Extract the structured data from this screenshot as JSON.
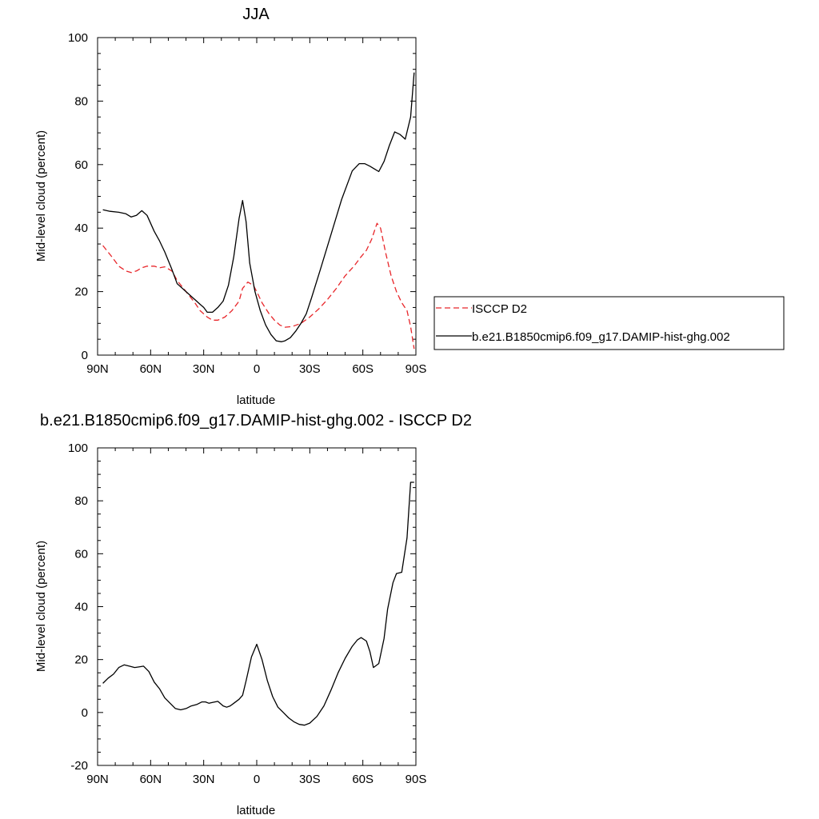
{
  "chart_data": [
    {
      "type": "line",
      "title": "JJA",
      "xlabel": "latitude",
      "ylabel": "Mid-level cloud (percent)",
      "xlim": [
        90,
        -90
      ],
      "ylim": [
        0,
        100
      ],
      "x_ticks": [
        {
          "value": 90,
          "label": "90N"
        },
        {
          "value": 60,
          "label": "60N"
        },
        {
          "value": 30,
          "label": "30N"
        },
        {
          "value": 0,
          "label": "0"
        },
        {
          "value": -30,
          "label": "30S"
        },
        {
          "value": -60,
          "label": "60S"
        },
        {
          "value": -90,
          "label": "90S"
        }
      ],
      "y_ticks": [
        0,
        20,
        40,
        60,
        80,
        100
      ],
      "grid": false,
      "legend_position": "right, outside plot",
      "series": [
        {
          "name": "ISCCP D2",
          "color": "#e8262a",
          "dash": "dashed",
          "x": [
            87,
            82,
            78,
            74,
            71,
            68,
            65,
            62,
            58,
            55,
            52,
            48,
            45,
            40,
            35,
            32,
            28,
            25,
            22,
            18,
            14,
            10,
            8,
            5,
            2,
            0,
            -3,
            -7,
            -10,
            -13,
            -16,
            -20,
            -25,
            -30,
            -35,
            -40,
            -45,
            -50,
            -55,
            -59,
            -62,
            -65,
            -66.5,
            -68,
            -70,
            -73,
            -76,
            -79,
            -82,
            -85,
            -87,
            -89
          ],
          "y": [
            34.5,
            31,
            28,
            26.5,
            26,
            26.5,
            27.5,
            28,
            28,
            27.5,
            27.8,
            26.5,
            23.5,
            20,
            16.5,
            14,
            12,
            11,
            11,
            12,
            14,
            17,
            21,
            23,
            22,
            20,
            16.5,
            13,
            11,
            9.5,
            8.8,
            9,
            10,
            12,
            14.5,
            17.5,
            21,
            25,
            28,
            31,
            33,
            36.5,
            39,
            41.5,
            40,
            32,
            25,
            20,
            16.5,
            14,
            9,
            2
          ]
        },
        {
          "name": "b.e21.B1850cmip6.f09_g17.DAMIP-hist-ghg.002",
          "color": "#000000",
          "dash": "solid",
          "x": [
            87,
            83,
            78,
            74,
            71,
            68,
            65,
            62,
            58,
            55,
            52,
            48,
            45,
            40,
            37,
            35,
            32,
            30,
            28,
            25,
            22,
            19,
            16,
            13,
            10,
            8,
            6,
            4,
            1,
            -2,
            -5,
            -8,
            -11,
            -14,
            -16,
            -19,
            -22,
            -25,
            -28,
            -31,
            -36,
            -42,
            -48,
            -54,
            -58,
            -61,
            -64,
            -67,
            -69,
            -72,
            -75,
            -78,
            -81,
            -84,
            -87,
            -89
          ],
          "y": [
            45.8,
            45.3,
            45,
            44.5,
            43.5,
            44,
            45.5,
            44,
            39,
            36,
            32.5,
            27,
            22.5,
            20,
            18.5,
            17.5,
            16,
            15,
            13.5,
            13.5,
            15,
            17,
            22,
            31,
            43,
            48.7,
            42,
            29,
            20,
            14,
            9.5,
            6.5,
            4.5,
            4.2,
            4.5,
            5.5,
            7.5,
            10,
            13,
            18,
            27,
            38,
            49,
            58,
            60.3,
            60.3,
            59.5,
            58.5,
            57.8,
            61,
            66,
            70.3,
            69.5,
            68,
            75,
            89
          ]
        }
      ]
    },
    {
      "type": "line",
      "title": "b.e21.B1850cmip6.f09_g17.DAMIP-hist-ghg.002 - ISCCP D2",
      "xlabel": "latitude",
      "ylabel": "Mid-level cloud (percent)",
      "xlim": [
        90,
        -90
      ],
      "ylim": [
        -20,
        100
      ],
      "x_ticks": [
        {
          "value": 90,
          "label": "90N"
        },
        {
          "value": 60,
          "label": "60N"
        },
        {
          "value": 30,
          "label": "30N"
        },
        {
          "value": 0,
          "label": "0"
        },
        {
          "value": -30,
          "label": "30S"
        },
        {
          "value": -60,
          "label": "60S"
        },
        {
          "value": -90,
          "label": "90S"
        }
      ],
      "y_ticks": [
        -20,
        0,
        20,
        40,
        60,
        80,
        100
      ],
      "grid": false,
      "series": [
        {
          "color": "#000000",
          "dash": "solid",
          "x": [
            87,
            84,
            81,
            78,
            75,
            72,
            69,
            66,
            64,
            61,
            58,
            55,
            52,
            49,
            46,
            43,
            40,
            37,
            34,
            31,
            29,
            27,
            25,
            22,
            19,
            17,
            15,
            13,
            10,
            8,
            6,
            3,
            0,
            -3,
            -6,
            -9,
            -12,
            -15,
            -18,
            -21,
            -24,
            -27,
            -30,
            -34,
            -38,
            -42,
            -46,
            -50,
            -54,
            -57,
            -59,
            -62,
            -64,
            -66,
            -69,
            -72,
            -74,
            -77,
            -79,
            -82,
            -85,
            -87,
            -89
          ],
          "y": [
            11,
            13,
            14.5,
            17,
            18,
            17.5,
            17,
            17.3,
            17.5,
            15.5,
            11.5,
            9,
            5.5,
            3.5,
            1.5,
            1,
            1.5,
            2.5,
            3,
            4,
            4,
            3.5,
            3.8,
            4.2,
            2.5,
            2,
            2.5,
            3.5,
            5,
            6.5,
            12,
            21,
            25.8,
            20,
            12,
            6,
            2,
            0,
            -2,
            -3.5,
            -4.5,
            -4.8,
            -4,
            -1.5,
            2.5,
            8.5,
            15,
            20.5,
            25,
            27.5,
            28.3,
            27,
            23,
            17,
            18.5,
            28,
            39,
            49,
            52.5,
            53,
            66,
            87,
            87
          ]
        }
      ]
    }
  ]
}
